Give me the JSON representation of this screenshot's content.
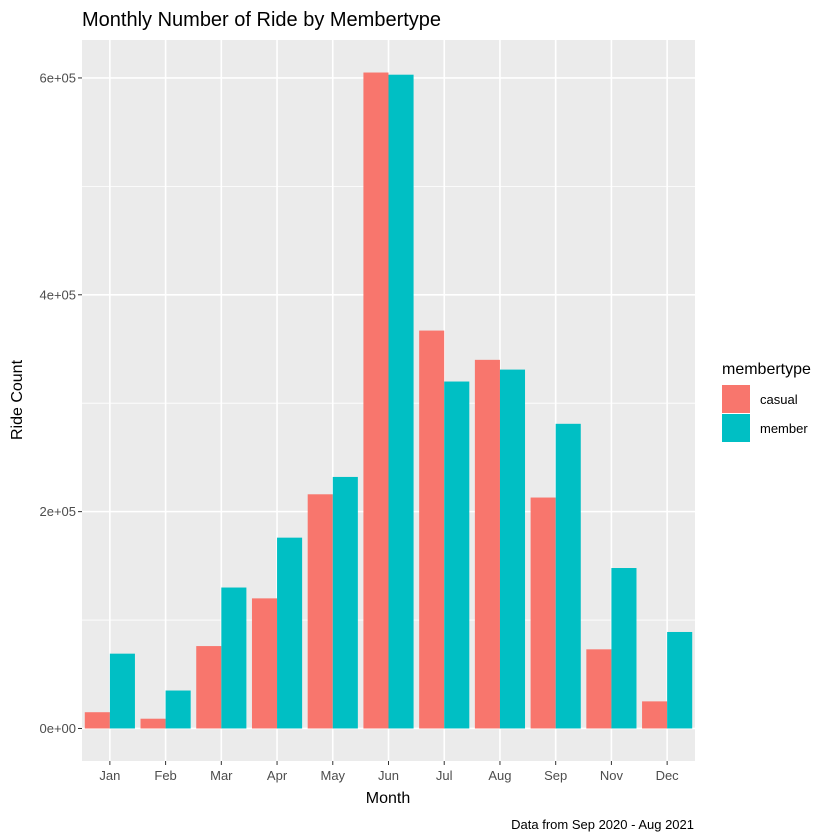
{
  "chart_data": {
    "type": "bar",
    "title": "Monthly Number of Ride by Membertype",
    "xlabel": "Month",
    "ylabel": "Ride Count",
    "caption": "Data from Sep 2020 - Aug 2021",
    "categories": [
      "Jan",
      "Feb",
      "Mar",
      "Apr",
      "May",
      "Jun",
      "Jul",
      "Aug",
      "Sep",
      "Nov",
      "Dec"
    ],
    "series": [
      {
        "name": "casual",
        "color": "#F8766D",
        "values": [
          15000,
          9000,
          76000,
          120000,
          216000,
          605000,
          367000,
          340000,
          213000,
          73000,
          25000
        ]
      },
      {
        "name": "member",
        "color": "#00BFC4",
        "values": [
          69000,
          35000,
          130000,
          176000,
          232000,
          603000,
          320000,
          331000,
          281000,
          148000,
          89000
        ]
      }
    ],
    "ylim": [
      -30000,
      635000
    ],
    "yticks": [
      0,
      200000,
      400000,
      600000
    ],
    "ytick_labels": [
      "0e+00",
      "2e+05",
      "4e+05",
      "6e+05"
    ],
    "legend": {
      "title": "membertype",
      "position": "right"
    },
    "grid": true,
    "panel_background": "#EBEBEB"
  }
}
